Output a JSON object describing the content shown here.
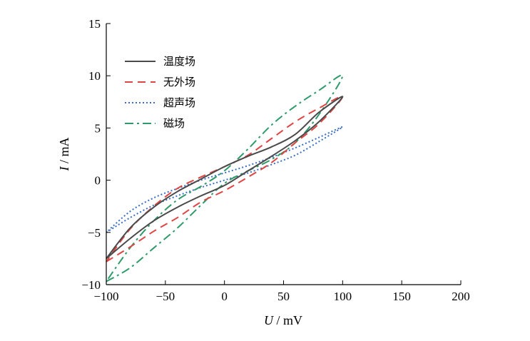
{
  "chart_data": {
    "type": "line",
    "title": "",
    "xlabel_var": "U",
    "xlabel_unit": " / mV",
    "ylabel_var": "I",
    "ylabel_unit": " / mA",
    "xlim": [
      -100,
      200
    ],
    "ylim": [
      -10,
      15
    ],
    "xticks": [
      -100,
      -50,
      0,
      50,
      100,
      150,
      200
    ],
    "yticks": [
      -10,
      -5,
      0,
      5,
      10,
      15
    ],
    "xtick_labels": [
      "−100",
      "−50",
      "0",
      "50",
      "100",
      "150",
      "200"
    ],
    "ytick_labels": [
      "−10",
      "−5",
      "0",
      "5",
      "10",
      "15"
    ],
    "legend_position": "top-left",
    "series": [
      {
        "name": "温度场",
        "color": "#4a4a4a",
        "dash": "solid",
        "x": [
          -100,
          -80,
          -60,
          -40,
          -20,
          0,
          20,
          40,
          60,
          80,
          100,
          80,
          60,
          40,
          20,
          0,
          -20,
          -40,
          -60,
          -80,
          -100
        ],
        "y": [
          -7.5,
          -5.6,
          -3.9,
          -2.6,
          -1.5,
          -0.5,
          0.9,
          2.3,
          3.8,
          5.6,
          8,
          6.5,
          4.4,
          3.2,
          2.3,
          1.3,
          0.1,
          -1.1,
          -2.6,
          -4.6,
          -7.5
        ]
      },
      {
        "name": "无外场",
        "color": "#e04545",
        "dash": "dashed",
        "x": [
          -100,
          -80,
          -60,
          -40,
          -20,
          0,
          20,
          40,
          60,
          80,
          100,
          80,
          60,
          40,
          20,
          0,
          -20,
          -40,
          -60,
          -80,
          -100
        ],
        "y": [
          -7.8,
          -6.4,
          -4.9,
          -3.6,
          -2.1,
          -1,
          0.3,
          1.7,
          3.6,
          5.4,
          8,
          6.9,
          5.6,
          4,
          2.4,
          1.3,
          0.3,
          -0.8,
          -2.5,
          -4.7,
          -7.8
        ]
      },
      {
        "name": "超声场",
        "color": "#3a6fc4",
        "dash": "dotted",
        "x": [
          -100,
          -80,
          -60,
          -40,
          -20,
          0,
          20,
          40,
          60,
          80,
          100,
          80,
          60,
          40,
          20,
          0,
          -20,
          -40,
          -60,
          -80,
          -100
        ],
        "y": [
          -5,
          -3.6,
          -2.4,
          -1.5,
          -0.7,
          0,
          0.7,
          1.5,
          2.4,
          3.7,
          5.1,
          4.1,
          3.1,
          2.2,
          1.4,
          0.7,
          0,
          -0.8,
          -1.7,
          -3,
          -5
        ]
      },
      {
        "name": "磁场",
        "color": "#2e9b6a",
        "dash": "dashdot",
        "x": [
          -100,
          -80,
          -60,
          -40,
          -20,
          0,
          20,
          40,
          60,
          80,
          100,
          80,
          60,
          40,
          20,
          0,
          -20,
          -40,
          -60,
          -80,
          -100
        ],
        "y": [
          -9.7,
          -8.4,
          -6.5,
          -4.6,
          -2.4,
          -0.3,
          0.9,
          2,
          3.6,
          6.3,
          10,
          8.6,
          7.1,
          5.3,
          3,
          0.9,
          -0.6,
          -1.9,
          -3.9,
          -6.5,
          -9.7
        ]
      }
    ]
  }
}
